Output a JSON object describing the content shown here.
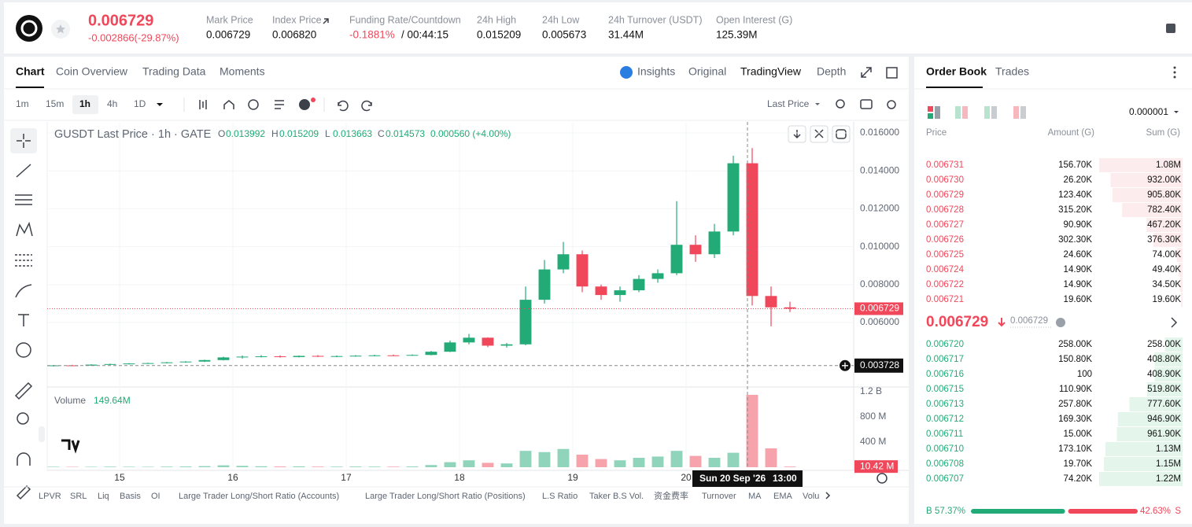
{
  "header": {
    "price": "0.006729",
    "change": "-0.002866(-29.87%)",
    "stats": [
      {
        "label": "Mark Price",
        "value": "0.006729"
      },
      {
        "label": "Index Price",
        "value": "0.006820"
      },
      {
        "label": "Funding Rate/Countdown",
        "value": "-0.1881%",
        "countdown": "/ 00:44:15"
      },
      {
        "label": "24h High",
        "value": "0.015209"
      },
      {
        "label": "24h Low",
        "value": "0.005673"
      },
      {
        "label": "24h Turnover (USDT)",
        "value": "31.44M"
      },
      {
        "label": "Open Interest (G)",
        "value": "125.39M"
      }
    ]
  },
  "chart_tabs": [
    "Chart",
    "Coin Overview",
    "Trading Data",
    "Moments"
  ],
  "view_tabs": [
    "Insights",
    "Original",
    "TradingView",
    "Depth"
  ],
  "intervals": [
    "1m",
    "15m",
    "1h",
    "4h",
    "1D"
  ],
  "price_source": "Last Price",
  "chart": {
    "type": "candlestick",
    "title": "GUSDT Last Price · 1h · GATE",
    "ohlc": [
      {
        "key": "O",
        "value": "0.013992"
      },
      {
        "key": "H",
        "value": "0.015209"
      },
      {
        "key": "L",
        "value": "0.013663"
      },
      {
        "key": "C",
        "value": "0.014573"
      }
    ],
    "change": "0.000560 (+4.00%)",
    "volume_title": "Volume",
    "volume_value": "149.64M",
    "x": [
      -14,
      -10,
      -6,
      -2,
      2,
      6,
      10,
      14,
      18,
      22,
      26,
      30,
      34,
      38,
      42,
      46,
      50,
      54,
      58,
      62,
      66,
      70,
      74,
      78,
      82,
      86,
      90,
      94,
      98,
      102,
      106,
      110,
      114,
      118,
      122,
      126,
      130,
      134,
      138,
      142
    ],
    "open": [
      0.0037,
      0.00374,
      0.00373,
      0.00378,
      0.00381,
      0.00384,
      0.00386,
      0.0039,
      0.00394,
      0.00402,
      0.00416,
      0.0042,
      0.00422,
      0.00418,
      0.00424,
      0.0042,
      0.00423,
      0.00425,
      0.00427,
      0.00425,
      0.00429,
      0.00446,
      0.00495,
      0.0052,
      0.00478,
      0.00485,
      0.0072,
      0.0088,
      0.0096,
      0.0079,
      0.00745,
      0.0077,
      0.0083,
      0.0086,
      0.0101,
      0.0096,
      0.0108,
      0.0144,
      0.0074,
      0.0068
    ],
    "high": [
      0.00376,
      0.00377,
      0.0038,
      0.00383,
      0.00386,
      0.00388,
      0.00392,
      0.00396,
      0.00404,
      0.0042,
      0.00426,
      0.00428,
      0.00427,
      0.00426,
      0.00428,
      0.00426,
      0.00428,
      0.0043,
      0.00431,
      0.00432,
      0.0045,
      0.00505,
      0.0054,
      0.00522,
      0.00492,
      0.0079,
      0.0093,
      0.01025,
      0.0098,
      0.008,
      0.0079,
      0.0085,
      0.0088,
      0.0124,
      0.0106,
      0.0112,
      0.0148,
      0.0152,
      0.0079,
      0.0071
    ],
    "low": [
      0.00368,
      0.00371,
      0.00372,
      0.00376,
      0.00379,
      0.00382,
      0.00384,
      0.00388,
      0.00392,
      0.004,
      0.0041,
      0.00416,
      0.00415,
      0.00416,
      0.00418,
      0.00417,
      0.0042,
      0.00422,
      0.00423,
      0.00424,
      0.00427,
      0.00444,
      0.00485,
      0.0047,
      0.00468,
      0.0048,
      0.007,
      0.0086,
      0.0076,
      0.0072,
      0.0071,
      0.0076,
      0.0081,
      0.0085,
      0.0092,
      0.0094,
      0.0106,
      0.0069,
      0.0058,
      0.00655
    ],
    "close": [
      0.00374,
      0.00373,
      0.00378,
      0.00381,
      0.00384,
      0.00386,
      0.0039,
      0.00394,
      0.00402,
      0.00416,
      0.0042,
      0.00422,
      0.00418,
      0.00424,
      0.0042,
      0.00423,
      0.00425,
      0.00427,
      0.00425,
      0.00429,
      0.00446,
      0.00495,
      0.0052,
      0.00478,
      0.00485,
      0.0072,
      0.0088,
      0.0096,
      0.0079,
      0.00745,
      0.0077,
      0.0083,
      0.0086,
      0.0101,
      0.0096,
      0.0108,
      0.0144,
      0.0074,
      0.0068,
      0.006729
    ],
    "volume": [
      8,
      6,
      7,
      9,
      8,
      7,
      10,
      12,
      18,
      30,
      22,
      15,
      12,
      14,
      10,
      9,
      11,
      10,
      9,
      12,
      35,
      80,
      110,
      70,
      60,
      260,
      240,
      290,
      200,
      130,
      110,
      150,
      170,
      260,
      180,
      150,
      230,
      1150,
      300,
      10.42
    ],
    "xlim": [
      -15.33,
      155.5
    ],
    "xticks": [
      {
        "value": 0,
        "label": "15"
      },
      {
        "value": 24,
        "label": "16"
      },
      {
        "value": 48,
        "label": "17"
      },
      {
        "value": 72,
        "label": "18"
      },
      {
        "value": 96,
        "label": "19"
      },
      {
        "value": 120,
        "label": "20"
      }
    ],
    "ylim": [
      0.0026,
      0.01658
    ],
    "yticks": [
      {
        "value": 0.006,
        "label": "0.006000"
      },
      {
        "value": 0.008,
        "label": "0.008000"
      },
      {
        "value": 0.01,
        "label": "0.010000"
      },
      {
        "value": 0.012,
        "label": "0.012000"
      },
      {
        "value": 0.014,
        "label": "0.014000"
      },
      {
        "value": 0.016,
        "label": "0.016000"
      }
    ],
    "volume_ylim": [
      0,
      1262
    ],
    "volume_yticks": [
      {
        "value": 400,
        "label": "400 M"
      },
      {
        "value": 800,
        "label": "800 M"
      },
      {
        "value": 1200,
        "label": "1.2 B"
      }
    ],
    "last_price": {
      "value": 0.006729,
      "label": "0.006729"
    },
    "last_volume": {
      "value": 10.42,
      "label": "10.42 M"
    },
    "crosshair": {
      "x": 133,
      "date": "Sun 20 Sep '26",
      "time": "13:00",
      "y": {
        "value": 0.003728,
        "label": "0.003728"
      }
    },
    "up_color": "#22ab77",
    "down_color": "#f0475a",
    "grid": true
  },
  "indicators": [
    "LPVR",
    "SRL",
    "Liq",
    "Basis",
    "OI",
    "Large Trader Long/Short Ratio (Accounts)",
    "Large Trader Long/Short Ratio (Positions)",
    "L.S Ratio",
    "Taker B.S Vol.",
    "资金费率",
    "Turnover",
    "MA",
    "EMA",
    "Volu"
  ],
  "order_book": {
    "tabs": [
      "Order Book",
      "Trades"
    ],
    "precision": "0.000001",
    "columns": [
      "Price",
      "Amount (G)",
      "Sum (G)"
    ],
    "asks": [
      {
        "price": "0.006731",
        "amount": "156.70K",
        "sum": {
          "value": 1080000,
          "label": "1.08M"
        }
      },
      {
        "price": "0.006730",
        "amount": "26.20K",
        "sum": {
          "value": 932000,
          "label": "932.00K"
        }
      },
      {
        "price": "0.006729",
        "amount": "123.40K",
        "sum": {
          "value": 905800,
          "label": "905.80K"
        }
      },
      {
        "price": "0.006728",
        "amount": "315.20K",
        "sum": {
          "value": 782400,
          "label": "782.40K"
        }
      },
      {
        "price": "0.006727",
        "amount": "90.90K",
        "sum": {
          "value": 467200,
          "label": "467.20K"
        }
      },
      {
        "price": "0.006726",
        "amount": "302.30K",
        "sum": {
          "value": 376300,
          "label": "376.30K"
        }
      },
      {
        "price": "0.006725",
        "amount": "24.60K",
        "sum": {
          "value": 74000,
          "label": "74.00K"
        }
      },
      {
        "price": "0.006724",
        "amount": "14.90K",
        "sum": {
          "value": 49400,
          "label": "49.40K"
        }
      },
      {
        "price": "0.006722",
        "amount": "14.90K",
        "sum": {
          "value": 34500,
          "label": "34.50K"
        }
      },
      {
        "price": "0.006721",
        "amount": "19.60K",
        "sum": {
          "value": 19600,
          "label": "19.60K"
        }
      }
    ],
    "mid_price": "0.006729",
    "mark_price": "0.006729",
    "bids": [
      {
        "price": "0.006720",
        "amount": "258.00K",
        "sum": {
          "value": 258000,
          "label": "258.00K"
        }
      },
      {
        "price": "0.006717",
        "amount": "150.80K",
        "sum": {
          "value": 408800,
          "label": "408.80K"
        }
      },
      {
        "price": "0.006716",
        "amount": "100",
        "sum": {
          "value": 408900,
          "label": "408.90K"
        }
      },
      {
        "price": "0.006715",
        "amount": "110.90K",
        "sum": {
          "value": 519800,
          "label": "519.80K"
        }
      },
      {
        "price": "0.006713",
        "amount": "257.80K",
        "sum": {
          "value": 777600,
          "label": "777.60K"
        }
      },
      {
        "price": "0.006712",
        "amount": "169.30K",
        "sum": {
          "value": 946900,
          "label": "946.90K"
        }
      },
      {
        "price": "0.006711",
        "amount": "15.00K",
        "sum": {
          "value": 961900,
          "label": "961.90K"
        }
      },
      {
        "price": "0.006710",
        "amount": "173.10K",
        "sum": {
          "value": 1130000,
          "label": "1.13M"
        }
      },
      {
        "price": "0.006708",
        "amount": "19.70K",
        "sum": {
          "value": 1150000,
          "label": "1.15M"
        }
      },
      {
        "price": "0.006707",
        "amount": "74.20K",
        "sum": {
          "value": 1220000,
          "label": "1.22M"
        }
      }
    ],
    "ratio": {
      "buy_key": "B",
      "buy": {
        "value": 57.37,
        "label": "57.37%"
      },
      "sell": {
        "value": 42.63,
        "label": "42.63%"
      },
      "sell_key": "S"
    }
  }
}
